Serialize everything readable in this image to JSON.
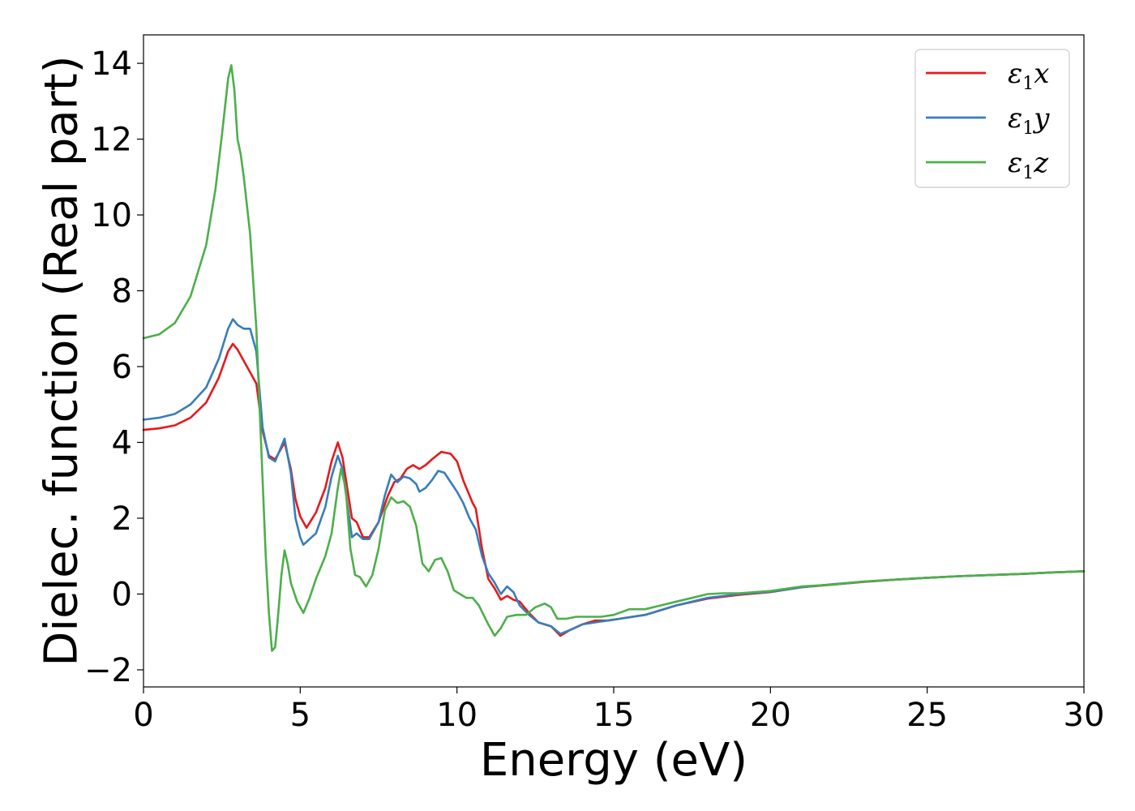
{
  "chart_data": {
    "type": "line",
    "xlabel": "Energy (eV)",
    "ylabel": "Dielec. function (Real part)",
    "xlim": [
      0,
      30
    ],
    "ylim": [
      -2.45,
      14.75
    ],
    "xticks": [
      0,
      5,
      10,
      15,
      20,
      25,
      30
    ],
    "xtick_labels": [
      "0",
      "5",
      "10",
      "15",
      "20",
      "25",
      "30"
    ],
    "yticks": [
      -2,
      0,
      2,
      4,
      6,
      8,
      10,
      12,
      14
    ],
    "ytick_labels": [
      "−2",
      "0",
      "2",
      "4",
      "6",
      "8",
      "10",
      "12",
      "14"
    ],
    "grid": false,
    "legend_position": "top-right",
    "series": [
      {
        "name": "ε1x",
        "legend_base": "ε",
        "legend_sub": "1",
        "legend_var": "x",
        "color": "#e41a1c",
        "points": [
          [
            0,
            4.33
          ],
          [
            0.5,
            4.37
          ],
          [
            1.0,
            4.45
          ],
          [
            1.5,
            4.65
          ],
          [
            2.0,
            5.05
          ],
          [
            2.4,
            5.7
          ],
          [
            2.7,
            6.4
          ],
          [
            2.85,
            6.6
          ],
          [
            3.0,
            6.45
          ],
          [
            3.2,
            6.15
          ],
          [
            3.4,
            5.85
          ],
          [
            3.6,
            5.55
          ],
          [
            3.8,
            4.3
          ],
          [
            4.0,
            3.65
          ],
          [
            4.2,
            3.55
          ],
          [
            4.5,
            4.0
          ],
          [
            4.7,
            3.3
          ],
          [
            4.85,
            2.5
          ],
          [
            5.0,
            2.05
          ],
          [
            5.2,
            1.75
          ],
          [
            5.5,
            2.15
          ],
          [
            5.8,
            2.8
          ],
          [
            6.0,
            3.5
          ],
          [
            6.2,
            4.0
          ],
          [
            6.35,
            3.6
          ],
          [
            6.5,
            2.8
          ],
          [
            6.65,
            2.0
          ],
          [
            6.8,
            1.9
          ],
          [
            7.0,
            1.5
          ],
          [
            7.2,
            1.5
          ],
          [
            7.5,
            1.9
          ],
          [
            7.8,
            2.6
          ],
          [
            8.0,
            2.95
          ],
          [
            8.2,
            3.05
          ],
          [
            8.4,
            3.3
          ],
          [
            8.6,
            3.4
          ],
          [
            8.8,
            3.3
          ],
          [
            9.0,
            3.4
          ],
          [
            9.2,
            3.55
          ],
          [
            9.5,
            3.75
          ],
          [
            9.8,
            3.7
          ],
          [
            10.0,
            3.5
          ],
          [
            10.2,
            3.0
          ],
          [
            10.5,
            2.4
          ],
          [
            10.6,
            2.25
          ],
          [
            10.8,
            1.2
          ],
          [
            11.0,
            0.4
          ],
          [
            11.2,
            0.15
          ],
          [
            11.4,
            -0.15
          ],
          [
            11.6,
            -0.05
          ],
          [
            11.8,
            -0.15
          ],
          [
            12.0,
            -0.2
          ],
          [
            12.3,
            -0.5
          ],
          [
            12.6,
            -0.75
          ],
          [
            13.0,
            -0.85
          ],
          [
            13.3,
            -1.1
          ],
          [
            13.6,
            -0.95
          ],
          [
            14.0,
            -0.8
          ],
          [
            14.4,
            -0.7
          ],
          [
            14.8,
            -0.7
          ],
          [
            15.2,
            -0.65
          ],
          [
            16.0,
            -0.55
          ],
          [
            17.0,
            -0.3
          ],
          [
            18.0,
            -0.12
          ],
          [
            19.0,
            -0.02
          ],
          [
            20.0,
            0.05
          ],
          [
            21.0,
            0.18
          ],
          [
            22.0,
            0.25
          ],
          [
            23.0,
            0.32
          ],
          [
            24.0,
            0.38
          ],
          [
            25.0,
            0.43
          ],
          [
            26.0,
            0.47
          ],
          [
            27.0,
            0.5
          ],
          [
            28.0,
            0.53
          ],
          [
            29.0,
            0.57
          ],
          [
            30.0,
            0.6
          ]
        ]
      },
      {
        "name": "ε1y",
        "legend_base": "ε",
        "legend_sub": "1",
        "legend_var": "y",
        "color": "#377eb8",
        "points": [
          [
            0,
            4.6
          ],
          [
            0.5,
            4.65
          ],
          [
            1.0,
            4.75
          ],
          [
            1.5,
            5.0
          ],
          [
            2.0,
            5.45
          ],
          [
            2.4,
            6.2
          ],
          [
            2.7,
            7.0
          ],
          [
            2.85,
            7.25
          ],
          [
            3.0,
            7.1
          ],
          [
            3.2,
            7.0
          ],
          [
            3.4,
            7.0
          ],
          [
            3.6,
            6.4
          ],
          [
            3.8,
            4.4
          ],
          [
            4.0,
            3.6
          ],
          [
            4.2,
            3.5
          ],
          [
            4.5,
            4.1
          ],
          [
            4.7,
            3.2
          ],
          [
            4.85,
            2.0
          ],
          [
            5.0,
            1.5
          ],
          [
            5.1,
            1.3
          ],
          [
            5.3,
            1.45
          ],
          [
            5.5,
            1.6
          ],
          [
            5.8,
            2.3
          ],
          [
            6.0,
            3.1
          ],
          [
            6.2,
            3.65
          ],
          [
            6.35,
            3.3
          ],
          [
            6.5,
            2.4
          ],
          [
            6.65,
            1.5
          ],
          [
            6.8,
            1.6
          ],
          [
            7.0,
            1.45
          ],
          [
            7.2,
            1.45
          ],
          [
            7.5,
            1.9
          ],
          [
            7.7,
            2.6
          ],
          [
            7.9,
            3.15
          ],
          [
            8.1,
            2.95
          ],
          [
            8.3,
            3.1
          ],
          [
            8.5,
            3.05
          ],
          [
            8.7,
            2.9
          ],
          [
            8.8,
            2.7
          ],
          [
            9.0,
            2.8
          ],
          [
            9.2,
            3.0
          ],
          [
            9.4,
            3.25
          ],
          [
            9.6,
            3.2
          ],
          [
            9.8,
            2.95
          ],
          [
            10.0,
            2.7
          ],
          [
            10.2,
            2.4
          ],
          [
            10.4,
            2.0
          ],
          [
            10.6,
            1.7
          ],
          [
            10.8,
            1.0
          ],
          [
            11.0,
            0.55
          ],
          [
            11.2,
            0.3
          ],
          [
            11.4,
            0.0
          ],
          [
            11.6,
            0.2
          ],
          [
            11.8,
            0.05
          ],
          [
            12.0,
            -0.3
          ],
          [
            12.3,
            -0.55
          ],
          [
            12.6,
            -0.75
          ],
          [
            13.0,
            -0.85
          ],
          [
            13.3,
            -1.05
          ],
          [
            13.6,
            -0.95
          ],
          [
            14.0,
            -0.8
          ],
          [
            14.4,
            -0.75
          ],
          [
            14.8,
            -0.7
          ],
          [
            15.2,
            -0.65
          ],
          [
            16.0,
            -0.55
          ],
          [
            17.0,
            -0.3
          ],
          [
            18.0,
            -0.1
          ],
          [
            19.0,
            0.0
          ],
          [
            20.0,
            0.06
          ],
          [
            21.0,
            0.18
          ],
          [
            22.0,
            0.26
          ],
          [
            23.0,
            0.33
          ],
          [
            24.0,
            0.38
          ],
          [
            25.0,
            0.43
          ],
          [
            26.0,
            0.47
          ],
          [
            27.0,
            0.5
          ],
          [
            28.0,
            0.53
          ],
          [
            29.0,
            0.57
          ],
          [
            30.0,
            0.6
          ]
        ]
      },
      {
        "name": "ε1z",
        "legend_base": "ε",
        "legend_sub": "1",
        "legend_var": "z",
        "color": "#4daf4a",
        "points": [
          [
            0,
            6.75
          ],
          [
            0.5,
            6.85
          ],
          [
            1.0,
            7.15
          ],
          [
            1.5,
            7.85
          ],
          [
            2.0,
            9.2
          ],
          [
            2.3,
            10.7
          ],
          [
            2.5,
            12.1
          ],
          [
            2.7,
            13.6
          ],
          [
            2.8,
            13.95
          ],
          [
            2.9,
            13.3
          ],
          [
            3.0,
            12.0
          ],
          [
            3.1,
            11.6
          ],
          [
            3.2,
            11.0
          ],
          [
            3.4,
            9.5
          ],
          [
            3.6,
            7.0
          ],
          [
            3.75,
            4.0
          ],
          [
            3.9,
            1.0
          ],
          [
            4.0,
            -0.5
          ],
          [
            4.1,
            -1.5
          ],
          [
            4.2,
            -1.4
          ],
          [
            4.3,
            -0.5
          ],
          [
            4.4,
            0.5
          ],
          [
            4.5,
            1.15
          ],
          [
            4.6,
            0.8
          ],
          [
            4.7,
            0.3
          ],
          [
            4.9,
            -0.2
          ],
          [
            5.1,
            -0.5
          ],
          [
            5.3,
            -0.1
          ],
          [
            5.5,
            0.4
          ],
          [
            5.8,
            1.0
          ],
          [
            6.0,
            1.6
          ],
          [
            6.2,
            2.8
          ],
          [
            6.3,
            3.3
          ],
          [
            6.45,
            2.8
          ],
          [
            6.6,
            1.2
          ],
          [
            6.75,
            0.5
          ],
          [
            6.9,
            0.45
          ],
          [
            7.1,
            0.2
          ],
          [
            7.3,
            0.5
          ],
          [
            7.5,
            1.2
          ],
          [
            7.7,
            2.2
          ],
          [
            7.9,
            2.55
          ],
          [
            8.1,
            2.4
          ],
          [
            8.3,
            2.45
          ],
          [
            8.5,
            2.3
          ],
          [
            8.7,
            1.8
          ],
          [
            8.9,
            0.8
          ],
          [
            9.1,
            0.6
          ],
          [
            9.3,
            0.9
          ],
          [
            9.5,
            0.95
          ],
          [
            9.7,
            0.6
          ],
          [
            9.9,
            0.1
          ],
          [
            10.1,
            0.0
          ],
          [
            10.3,
            -0.1
          ],
          [
            10.5,
            -0.1
          ],
          [
            10.7,
            -0.3
          ],
          [
            11.0,
            -0.8
          ],
          [
            11.2,
            -1.1
          ],
          [
            11.4,
            -0.9
          ],
          [
            11.6,
            -0.6
          ],
          [
            11.9,
            -0.55
          ],
          [
            12.2,
            -0.55
          ],
          [
            12.5,
            -0.35
          ],
          [
            12.8,
            -0.25
          ],
          [
            13.0,
            -0.35
          ],
          [
            13.2,
            -0.65
          ],
          [
            13.5,
            -0.65
          ],
          [
            13.8,
            -0.6
          ],
          [
            14.2,
            -0.6
          ],
          [
            14.6,
            -0.6
          ],
          [
            15.0,
            -0.55
          ],
          [
            15.5,
            -0.4
          ],
          [
            16.0,
            -0.4
          ],
          [
            16.5,
            -0.3
          ],
          [
            17.0,
            -0.2
          ],
          [
            17.5,
            -0.1
          ],
          [
            18.0,
            0.0
          ],
          [
            18.5,
            0.02
          ],
          [
            19.0,
            0.02
          ],
          [
            20.0,
            0.08
          ],
          [
            21.0,
            0.2
          ],
          [
            22.0,
            0.25
          ],
          [
            23.0,
            0.33
          ],
          [
            24.0,
            0.38
          ],
          [
            25.0,
            0.43
          ],
          [
            26.0,
            0.47
          ],
          [
            27.0,
            0.5
          ],
          [
            28.0,
            0.53
          ],
          [
            29.0,
            0.57
          ],
          [
            30.0,
            0.6
          ]
        ]
      }
    ]
  }
}
